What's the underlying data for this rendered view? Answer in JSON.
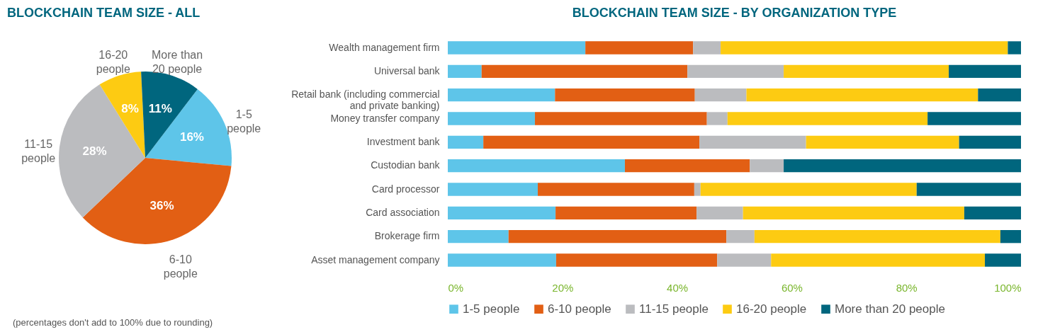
{
  "chart_data": [
    {
      "type": "pie",
      "title": "BLOCKCHAIN TEAM SIZE - ALL",
      "categories": [
        "1-5 people",
        "6-10 people",
        "11-15 people",
        "16-20 people",
        "More than 20 people"
      ],
      "values": [
        16,
        36,
        28,
        8,
        11
      ],
      "colors": [
        "#5ec5e9",
        "#e25f14",
        "#bbbcbf",
        "#fdcb12",
        "#00667e"
      ],
      "value_labels": [
        "16%",
        "36%",
        "28%",
        "8%",
        "11%"
      ],
      "annotations": [
        "(percentages don't add to 100% due to rounding)"
      ]
    },
    {
      "type": "bar",
      "title": "BLOCKCHAIN TEAM SIZE - BY ORGANIZATION TYPE",
      "orientation": "horizontal",
      "stacked": true,
      "legend": "bottom",
      "categories": [
        "Wealth management firm",
        "Universal bank",
        "Retail bank (including commercial and private banking)",
        "Money transfer company",
        "Investment bank",
        "Custodian bank",
        "Card processor",
        "Card association",
        "Brokerage firm",
        "Asset management company"
      ],
      "series": [
        {
          "name": "1-5 people",
          "color": "#5ec5e9",
          "values": [
            24.0,
            5.9,
            18.7,
            15.2,
            6.2,
            30.9,
            15.7,
            18.8,
            10.6,
            18.9
          ]
        },
        {
          "name": "6-10 people",
          "color": "#e25f14",
          "values": [
            18.8,
            35.9,
            24.4,
            30.0,
            37.7,
            21.8,
            27.3,
            24.6,
            38.0,
            28.1
          ]
        },
        {
          "name": "11-15 people",
          "color": "#bbbcbf",
          "values": [
            4.8,
            16.8,
            9.0,
            3.6,
            18.6,
            5.9,
            1.1,
            8.1,
            4.9,
            9.4
          ]
        },
        {
          "name": "16-20 people",
          "color": "#fdcb12",
          "values": [
            50.1,
            28.8,
            40.4,
            34.9,
            26.7,
            0,
            37.7,
            38.6,
            42.9,
            37.3
          ]
        },
        {
          "name": "More than 20 people",
          "color": "#00667e",
          "values": [
            2.3,
            12.6,
            7.5,
            16.3,
            10.8,
            41.4,
            18.2,
            9.9,
            3.6,
            6.3
          ]
        }
      ],
      "xlim": [
        0,
        100
      ],
      "xticks": [
        {
          "value": 0,
          "label": "0%"
        },
        {
          "value": 20,
          "label": "20%"
        },
        {
          "value": 40,
          "label": "40%"
        },
        {
          "value": 60,
          "label": "60%"
        },
        {
          "value": 80,
          "label": "80%"
        },
        {
          "value": 100,
          "label": "100%"
        }
      ]
    }
  ]
}
